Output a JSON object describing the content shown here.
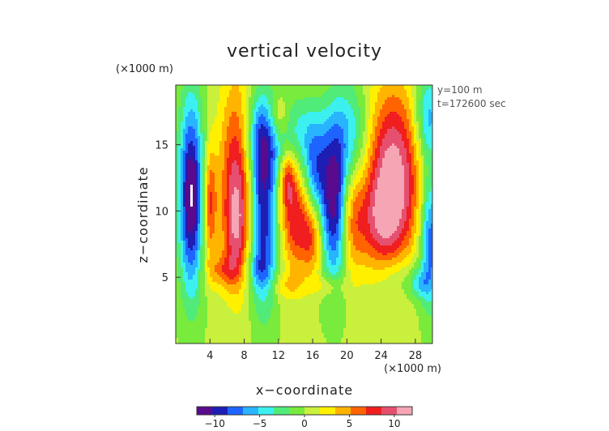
{
  "chart_data": {
    "type": "heatmap",
    "title": "vertical velocity",
    "xlabel": "x−coordinate",
    "ylabel": "z−coordinate",
    "x_unit": "(×1000 m)",
    "y_unit": "(×1000 m)",
    "info_lines": [
      "y=100 m",
      "t=172600 sec"
    ],
    "xlim": [
      0,
      30
    ],
    "ylim": [
      0,
      19.5
    ],
    "x_ticks": [
      4,
      8,
      12,
      16,
      20,
      24,
      28
    ],
    "y_ticks": [
      5,
      10,
      15
    ],
    "x_tick_labels": [
      "4",
      "8",
      "12",
      "16",
      "20",
      "24",
      "28"
    ],
    "y_tick_labels": [
      "5",
      "10",
      "15"
    ],
    "colorbar": {
      "range": [
        -12,
        12
      ],
      "ticks": [
        -10,
        -5,
        0,
        5,
        10
      ],
      "tick_labels": [
        "−10",
        "−5",
        "0",
        "5",
        "10"
      ],
      "colors": [
        "#5a0a8c",
        "#1e1eb4",
        "#1e64ff",
        "#28b4ff",
        "#3cf0f0",
        "#50eb78",
        "#78eb3c",
        "#c8f03c",
        "#fff000",
        "#ffb400",
        "#ff6400",
        "#f01e1e",
        "#e6506e",
        "#f5a5b4"
      ]
    },
    "background_value": 0.3,
    "features": [
      {
        "x": 1.8,
        "z": 11.2,
        "sx": 1.0,
        "sz": 5.0,
        "v": -12.5
      },
      {
        "x": 4.0,
        "z": 10.5,
        "sx": 0.55,
        "sz": 3.0,
        "v": 7
      },
      {
        "x": 7.2,
        "z": 12.5,
        "sx": 1.4,
        "sz": 5.0,
        "v": 9.5
      },
      {
        "x": 7.0,
        "z": 8.0,
        "sx": 1.0,
        "sz": 2.5,
        "v": 4
      },
      {
        "x": 10.2,
        "z": 9.5,
        "sx": 1.1,
        "sz": 4.5,
        "v": -10.5
      },
      {
        "x": 10.0,
        "z": 15.5,
        "sx": 1.6,
        "sz": 2.5,
        "v": -7
      },
      {
        "x": 14.0,
        "z": 9.5,
        "sx": 1.2,
        "sz": 2.8,
        "v": 8
      },
      {
        "x": 16.0,
        "z": 8.0,
        "sx": 0.9,
        "sz": 2.0,
        "v": 6
      },
      {
        "x": 13.0,
        "z": 12.5,
        "sx": 0.6,
        "sz": 1.5,
        "v": 6
      },
      {
        "x": 12.0,
        "z": 17.0,
        "sx": 0.9,
        "sz": 1.3,
        "v": 5
      },
      {
        "x": 14.0,
        "z": 16.0,
        "sx": 2.0,
        "sz": 2.0,
        "v": -4
      },
      {
        "x": 16.2,
        "z": 13.0,
        "sx": 1.0,
        "sz": 2.6,
        "v": -7
      },
      {
        "x": 18.5,
        "z": 10.5,
        "sx": 1.1,
        "sz": 4.0,
        "v": -11.5
      },
      {
        "x": 20.5,
        "z": 9.5,
        "sx": 1.0,
        "sz": 3.0,
        "v": 5
      },
      {
        "x": 20.5,
        "z": 15.5,
        "sx": 1.8,
        "sz": 3.0,
        "v": -6
      },
      {
        "x": 25.3,
        "z": 13.0,
        "sx": 2.5,
        "sz": 4.5,
        "v": 11
      },
      {
        "x": 24.0,
        "z": 9.0,
        "sx": 2.0,
        "sz": 2.5,
        "v": 5
      },
      {
        "x": 29.8,
        "z": 8.0,
        "sx": 0.9,
        "sz": 3.5,
        "v": -9
      },
      {
        "x": 29.5,
        "z": 17.0,
        "sx": 1.2,
        "sz": 2.5,
        "v": -7
      },
      {
        "x": 5.5,
        "z": 5.5,
        "sx": 1.4,
        "sz": 0.9,
        "v": 4
      },
      {
        "x": 9.5,
        "z": 5.5,
        "sx": 1.2,
        "sz": 1.0,
        "v": -3
      },
      {
        "x": 26.0,
        "z": 5.0,
        "sx": 2.0,
        "sz": 1.2,
        "v": -2.5
      },
      {
        "x": 13.0,
        "z": 4.3,
        "sx": 1.5,
        "sz": 0.7,
        "v": 2.5
      },
      {
        "x": 18.0,
        "z": 4.3,
        "sx": 1.2,
        "sz": 0.6,
        "v": 3
      },
      {
        "x": 28.5,
        "z": 4.5,
        "sx": 0.8,
        "sz": 0.8,
        "v": -4
      }
    ]
  }
}
